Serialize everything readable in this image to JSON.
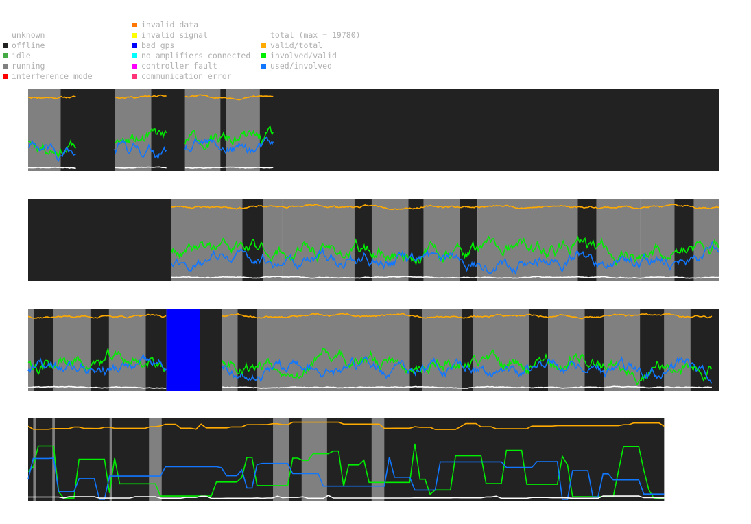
{
  "legend": {
    "status": [
      {
        "label": "unknown",
        "color": ""
      },
      {
        "label": "offline",
        "color": "#222222"
      },
      {
        "label": "idle",
        "color": "#44aa44"
      },
      {
        "label": "running",
        "color": "#808080"
      },
      {
        "label": "interference mode",
        "color": "#ff0000"
      }
    ],
    "errors": [
      {
        "label": "invalid data",
        "color": "#ff7700"
      },
      {
        "label": "invalid signal",
        "color": "#ffff00"
      },
      {
        "label": "bad gps",
        "color": "#0000ff"
      },
      {
        "label": "no amplifiers connected",
        "color": "#00ffff"
      },
      {
        "label": "controller fault",
        "color": "#ff00ff"
      },
      {
        "label": "communication error",
        "color": "#ff3377"
      }
    ],
    "metrics": [
      {
        "label": "total (max = 19780)",
        "color": ""
      },
      {
        "label": "valid/total",
        "color": "#ffaa00"
      },
      {
        "label": "involved/valid",
        "color": "#00ee00"
      },
      {
        "label": "used/involved",
        "color": "#1177ff"
      }
    ]
  },
  "chart_data": [
    {
      "type": "line",
      "x_range": [
        0,
        1000
      ],
      "ylim": [
        0,
        1
      ],
      "state_segments": [
        {
          "start": 0,
          "end": 47,
          "state": "running"
        },
        {
          "start": 47,
          "end": 125,
          "state": "offline"
        },
        {
          "start": 125,
          "end": 178,
          "state": "running"
        },
        {
          "start": 178,
          "end": 227,
          "state": "offline"
        },
        {
          "start": 227,
          "end": 278,
          "state": "running"
        },
        {
          "start": 278,
          "end": 286,
          "state": "offline"
        },
        {
          "start": 286,
          "end": 335,
          "state": "running"
        },
        {
          "start": 335,
          "end": 1000,
          "state": "offline"
        }
      ],
      "active_ranges": [
        [
          0,
          70
        ],
        [
          125,
          200
        ],
        [
          227,
          355
        ]
      ],
      "seed": 11
    },
    {
      "type": "line",
      "x_range": [
        0,
        1000
      ],
      "ylim": [
        0,
        1
      ],
      "state_segments": [
        {
          "start": 0,
          "end": 207,
          "state": "offline"
        },
        {
          "start": 207,
          "end": 310,
          "state": "running"
        },
        {
          "start": 310,
          "end": 340,
          "state": "offline"
        },
        {
          "start": 340,
          "end": 368,
          "state": "running"
        },
        {
          "start": 368,
          "end": 472,
          "state": "running"
        },
        {
          "start": 472,
          "end": 497,
          "state": "offline"
        },
        {
          "start": 497,
          "end": 550,
          "state": "running"
        },
        {
          "start": 550,
          "end": 572,
          "state": "offline"
        },
        {
          "start": 572,
          "end": 625,
          "state": "running"
        },
        {
          "start": 625,
          "end": 650,
          "state": "offline"
        },
        {
          "start": 650,
          "end": 690,
          "state": "running"
        },
        {
          "start": 690,
          "end": 795,
          "state": "running"
        },
        {
          "start": 795,
          "end": 822,
          "state": "offline"
        },
        {
          "start": 822,
          "end": 875,
          "state": "running"
        },
        {
          "start": 875,
          "end": 885,
          "state": "running"
        },
        {
          "start": 885,
          "end": 935,
          "state": "running"
        },
        {
          "start": 935,
          "end": 963,
          "state": "offline"
        },
        {
          "start": 963,
          "end": 1000,
          "state": "running"
        }
      ],
      "active_ranges": [
        [
          207,
          1000
        ]
      ],
      "seed": 23
    },
    {
      "type": "line",
      "x_range": [
        0,
        1000
      ],
      "ylim": [
        0,
        1
      ],
      "state_segments": [
        {
          "start": 0,
          "end": 8,
          "state": "running"
        },
        {
          "start": 8,
          "end": 37,
          "state": "offline"
        },
        {
          "start": 37,
          "end": 90,
          "state": "running"
        },
        {
          "start": 90,
          "end": 117,
          "state": "offline"
        },
        {
          "start": 117,
          "end": 170,
          "state": "running"
        },
        {
          "start": 170,
          "end": 200,
          "state": "offline"
        },
        {
          "start": 200,
          "end": 249,
          "state": "bad gps"
        },
        {
          "start": 249,
          "end": 281,
          "state": "offline"
        },
        {
          "start": 281,
          "end": 303,
          "state": "running"
        },
        {
          "start": 303,
          "end": 331,
          "state": "offline"
        },
        {
          "start": 331,
          "end": 500,
          "state": "running"
        },
        {
          "start": 500,
          "end": 552,
          "state": "running"
        },
        {
          "start": 552,
          "end": 570,
          "state": "offline"
        },
        {
          "start": 570,
          "end": 627,
          "state": "running"
        },
        {
          "start": 627,
          "end": 643,
          "state": "offline"
        },
        {
          "start": 643,
          "end": 725,
          "state": "running"
        },
        {
          "start": 725,
          "end": 752,
          "state": "offline"
        },
        {
          "start": 752,
          "end": 805,
          "state": "running"
        },
        {
          "start": 805,
          "end": 833,
          "state": "offline"
        },
        {
          "start": 833,
          "end": 885,
          "state": "running"
        },
        {
          "start": 885,
          "end": 920,
          "state": "offline"
        },
        {
          "start": 920,
          "end": 958,
          "state": "running"
        },
        {
          "start": 958,
          "end": 1000,
          "state": "offline"
        }
      ],
      "active_ranges": [
        [
          0,
          200
        ],
        [
          281,
          990
        ]
      ],
      "seed": 37
    },
    {
      "type": "line",
      "x_range": [
        0,
        1000
      ],
      "ylim": [
        0,
        1
      ],
      "width_fraction": 0.92,
      "state_segments": [
        {
          "start": 0,
          "end": 1000,
          "state": "offline"
        }
      ],
      "running_marks": [
        {
          "start": 8,
          "end": 12
        },
        {
          "start": 38,
          "end": 42
        },
        {
          "start": 128,
          "end": 132
        },
        {
          "start": 190,
          "end": 210
        },
        {
          "start": 385,
          "end": 410
        },
        {
          "start": 430,
          "end": 470
        },
        {
          "start": 540,
          "end": 560
        }
      ],
      "active_ranges": [
        [
          0,
          1000
        ]
      ],
      "seed": 53,
      "step_mode": true
    }
  ]
}
